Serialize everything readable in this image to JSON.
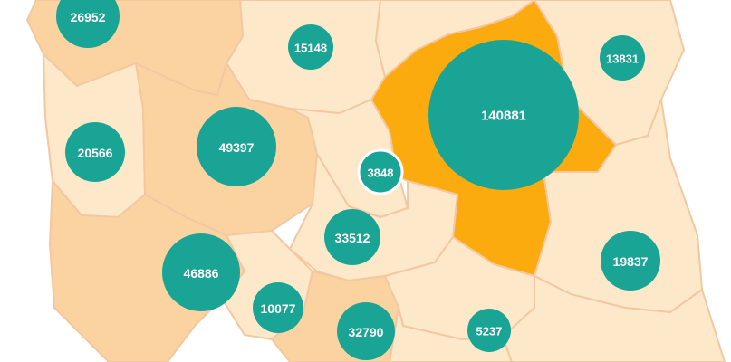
{
  "colors": {
    "background": "#ffffff",
    "region_light": "#fde8c9",
    "region_medium": "#fbd3a1",
    "region_highlight": "#fbab0d",
    "border": "#f3c7a1",
    "bubble": "#1aa495",
    "bubble_outline_small": "#ffffff"
  },
  "regions": [
    {
      "id": "west-pomeranian",
      "shade": "medium"
    },
    {
      "id": "pomeranian",
      "shade": "light"
    },
    {
      "id": "warmian-masurian",
      "shade": "light"
    },
    {
      "id": "podlaskie",
      "shade": "light"
    },
    {
      "id": "lubusz",
      "shade": "light"
    },
    {
      "id": "greater-poland",
      "shade": "medium"
    },
    {
      "id": "kuyavian-pomeranian",
      "shade": "light"
    },
    {
      "id": "masovian",
      "shade": "highlight"
    },
    {
      "id": "lodz",
      "shade": "light"
    },
    {
      "id": "lublin",
      "shade": "light"
    },
    {
      "id": "lower-silesian",
      "shade": "medium"
    },
    {
      "id": "opole",
      "shade": "light"
    },
    {
      "id": "silesian",
      "shade": "medium"
    },
    {
      "id": "swietokrzyskie",
      "shade": "light"
    },
    {
      "id": "lesser-poland",
      "shade": "light"
    },
    {
      "id": "subcarpathian",
      "shade": "light"
    }
  ],
  "bubbles": [
    {
      "label": "26952",
      "value": 26952,
      "region": "west-pomeranian"
    },
    {
      "label": "15148",
      "value": 15148,
      "region": "pomeranian"
    },
    {
      "label": "13831",
      "value": 13831,
      "region": "podlaskie"
    },
    {
      "label": "140881",
      "value": 140881,
      "region": "masovian"
    },
    {
      "label": "20566",
      "value": 20566,
      "region": "lubusz"
    },
    {
      "label": "49397",
      "value": 49397,
      "region": "greater-poland"
    },
    {
      "label": "3848",
      "value": 3848,
      "region": "kuyavian-pomeranian"
    },
    {
      "label": "33512",
      "value": 33512,
      "region": "lodz"
    },
    {
      "label": "46886",
      "value": 46886,
      "region": "lower-silesian"
    },
    {
      "label": "19837",
      "value": 19837,
      "region": "lublin"
    },
    {
      "label": "10077",
      "value": 10077,
      "region": "opole"
    },
    {
      "label": "32790",
      "value": 32790,
      "region": "silesian"
    },
    {
      "label": "5237",
      "value": 5237,
      "region": "swietokrzyskie"
    }
  ]
}
